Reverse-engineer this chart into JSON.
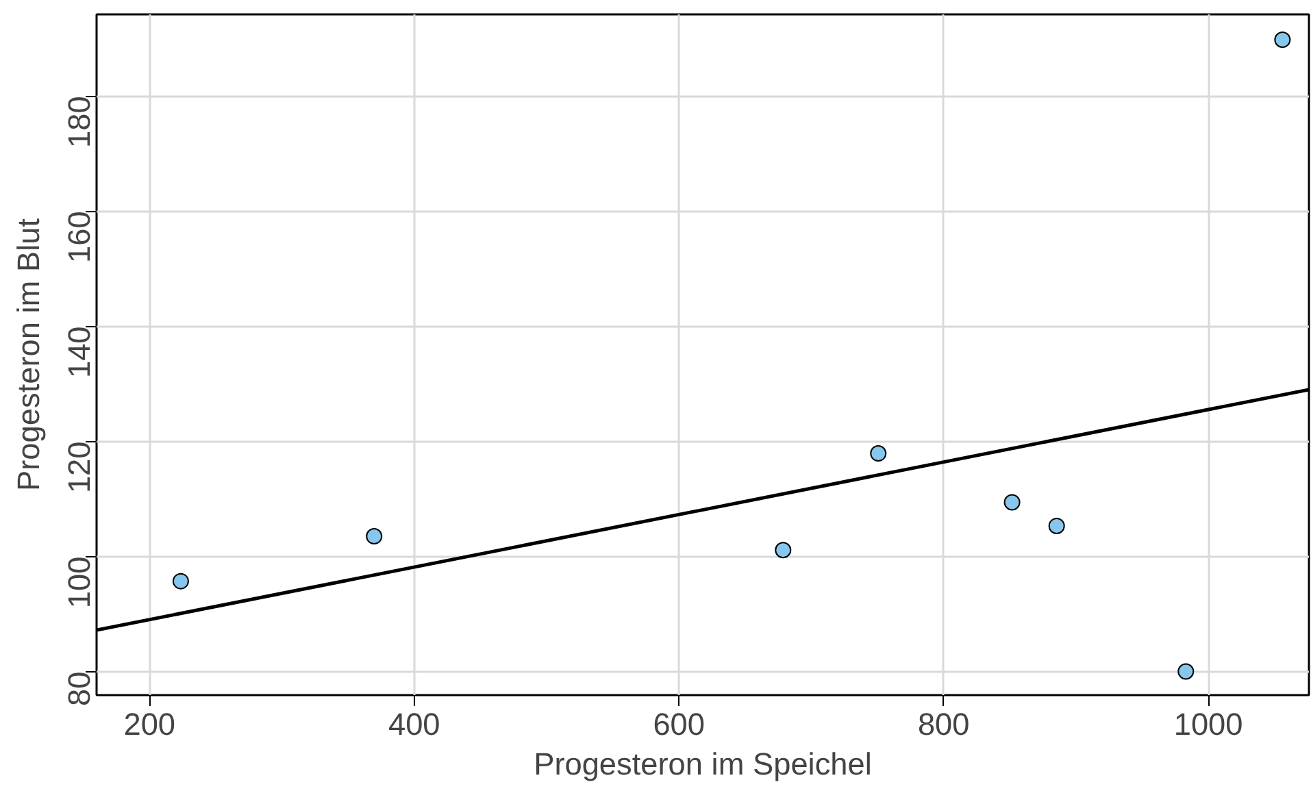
{
  "chart_data": {
    "type": "scatter",
    "xlabel": "Progesteron im Speichel",
    "ylabel": "Progesteron im Blut",
    "xlim": [
      160,
      1076
    ],
    "ylim": [
      75.9,
      194.2
    ],
    "xticks": [
      200,
      400,
      600,
      800,
      1000
    ],
    "yticks": [
      80,
      100,
      120,
      140,
      160,
      180
    ],
    "grid": true,
    "series": [
      {
        "marker": "circle",
        "color": "#87c7ee",
        "x": [
          223.6,
          369.7,
          678.7,
          750.6,
          851.7,
          885.4,
          983,
          1056
        ],
        "values": [
          95.7,
          103.5,
          101.1,
          117.9,
          109.4,
          105.3,
          80,
          189.8
        ]
      },
      {
        "type": "line",
        "color": "#000000",
        "x": [
          160,
          1076
        ],
        "values": [
          87.2,
          129.0
        ],
        "line_style": "solid"
      }
    ]
  }
}
